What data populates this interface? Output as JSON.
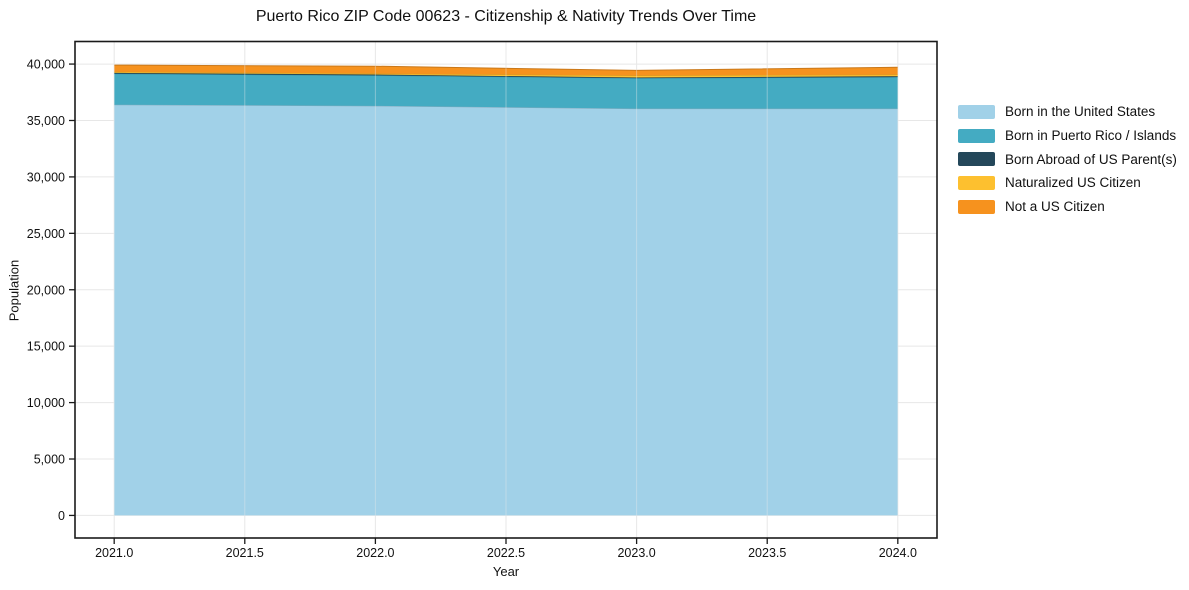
{
  "figure": {
    "title": "Puerto Rico ZIP Code 00623 - Citizenship & Nativity Trends Over Time",
    "xlabel": "Year",
    "ylabel": "Population"
  },
  "chart_data": {
    "type": "area",
    "stacked": true,
    "title": "Puerto Rico ZIP Code 00623 - Citizenship & Nativity Trends Over Time",
    "xlabel": "Year",
    "ylabel": "Population",
    "x": [
      2021,
      2022,
      2023,
      2024
    ],
    "series": [
      {
        "name": "Born in the United States",
        "color": "#a1d1e8",
        "values": [
          36400,
          36300,
          36050,
          36050
        ]
      },
      {
        "name": "Born in Puerto Rico / Islands",
        "color": "#44abc2",
        "values": [
          2750,
          2700,
          2700,
          2800
        ]
      },
      {
        "name": "Born Abroad of US Parent(s)",
        "color": "#24475a",
        "values": [
          70,
          70,
          60,
          70
        ]
      },
      {
        "name": "Naturalized US Citizen",
        "color": "#fdc02f",
        "values": [
          90,
          90,
          180,
          150
        ]
      },
      {
        "name": "Not a US Citizen",
        "color": "#f6921e",
        "values": [
          600,
          650,
          450,
          650
        ]
      }
    ],
    "xlim": [
      2020.85,
      2024.15
    ],
    "ylim": [
      -2000,
      42000
    ],
    "x_ticks": {
      "values": [
        2021.0,
        2021.5,
        2022.0,
        2022.5,
        2023.0,
        2023.5,
        2024.0
      ],
      "labels": [
        "2021.0",
        "2021.5",
        "2022.0",
        "2022.5",
        "2023.0",
        "2023.5",
        "2024.0"
      ]
    },
    "y_ticks": {
      "values": [
        0,
        5000,
        10000,
        15000,
        20000,
        25000,
        30000,
        35000,
        40000
      ],
      "labels": [
        "0",
        "5,000",
        "10,000",
        "15,000",
        "20,000",
        "25,000",
        "30,000",
        "35,000",
        "40,000"
      ]
    },
    "grid": true,
    "grid_color": "#e7e7e7",
    "spine_color": "#1a1a1a",
    "legend_position": "right"
  }
}
